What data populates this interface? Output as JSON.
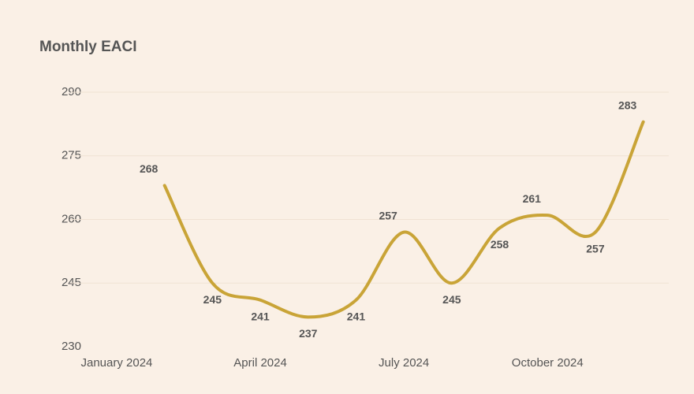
{
  "chart_data": {
    "type": "line",
    "title": "Monthly EACI",
    "categories": [
      "January 2024",
      null,
      null,
      "April 2024",
      null,
      null,
      "July 2024",
      null,
      null,
      "October 2024",
      null,
      null
    ],
    "series": [
      {
        "name": "EACI",
        "color": "#c9a437",
        "values": [
          null,
          268,
          245,
          241,
          237,
          241,
          257,
          245,
          258,
          261,
          257,
          283
        ]
      }
    ],
    "ylim": [
      230,
      290
    ],
    "yticks": [
      230,
      245,
      260,
      275,
      290
    ],
    "grid": true,
    "data_labels": true
  }
}
